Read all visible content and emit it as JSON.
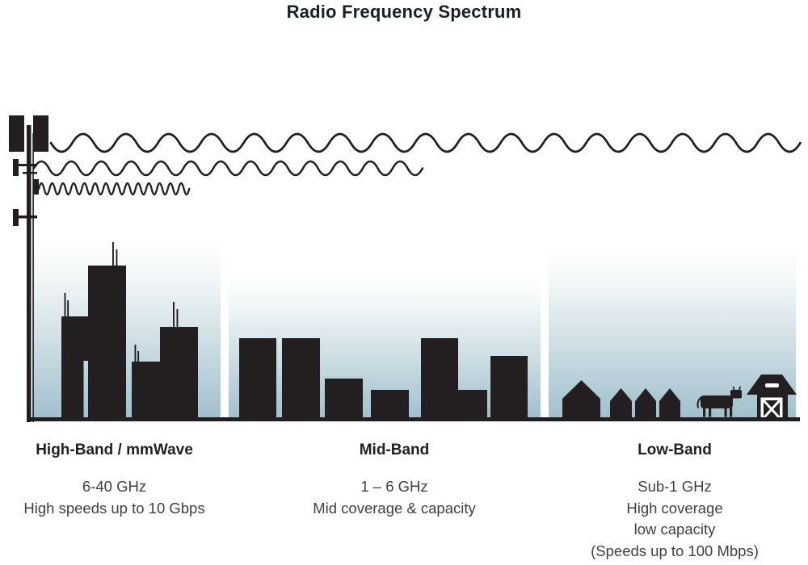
{
  "header": {
    "title": "Radio Frequency Spectrum"
  },
  "bands": [
    {
      "name": "High-Band / mmWave",
      "frequency": "6-40 GHz",
      "details": [
        "High speeds up to 10 Gbps"
      ],
      "scene": "dense-city-skyline"
    },
    {
      "name": "Mid-Band",
      "frequency": "1 – 6 GHz",
      "details": [
        "Mid coverage & capacity"
      ],
      "scene": "suburban-buildings"
    },
    {
      "name": "Low-Band",
      "frequency": "Sub-1 GHz",
      "details": [
        "High coverage",
        "low capacity",
        "(Speeds up to 100 Mbps)"
      ],
      "scene": "rural-houses-barn-cow"
    }
  ],
  "waves": [
    {
      "name": "long-wavelength-wave"
    },
    {
      "name": "medium-wavelength-wave"
    },
    {
      "name": "short-wavelength-wave"
    }
  ],
  "colors": {
    "ink": "#231f20",
    "title_text": "#18202b",
    "body_text": "#3f4040",
    "sky_gradient_top": "#ffffff",
    "sky_gradient_bottom": "#a0bfcc"
  }
}
